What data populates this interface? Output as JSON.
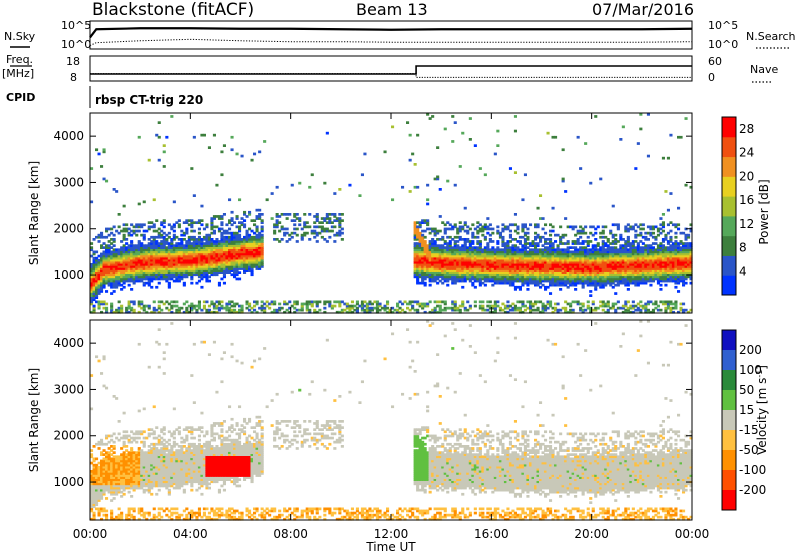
{
  "header": {
    "station": "Blackstone (fitACF)",
    "beam": "Beam 13",
    "date": "07/Mar/2016"
  },
  "panels": {
    "nsky_label": "N.Sky",
    "nsearch_label": "N.Search",
    "noise_ticks": [
      "10^5",
      "10^0"
    ],
    "freq_label": "Freq.",
    "freq_unit": "[MHz]",
    "freq_ticks": [
      "18",
      "8"
    ],
    "nave_label": "Nave",
    "nave_ticks": [
      "60",
      "0"
    ],
    "cpid_label": "CPID",
    "cpid_value": "rbsp CT-trig 220"
  },
  "colors": {
    "power_scale": [
      "#0033ff",
      "#2a55c8",
      "#3d7f3d",
      "#55a85a",
      "#a8c030",
      "#e8d020",
      "#f09020",
      "#f05010",
      "#ff0000"
    ],
    "velocity_scale": [
      "#ff0000",
      "#ff5000",
      "#ff9000",
      "#ffc040",
      "#c8c8b8",
      "#60c040",
      "#2a8a3a",
      "#3060d0",
      "#1010c0"
    ]
  },
  "chart_data": [
    {
      "type": "line",
      "title": "N.Sky / N.Search",
      "ylim": [
        "10^0",
        "10^5"
      ],
      "series": [
        {
          "name": "N.Sky",
          "x": [
            "00:00",
            "00:15",
            "02:00",
            "04:00",
            "06:00",
            "08:00",
            "10:00",
            "12:00",
            "14:00",
            "16:00",
            "18:00",
            "20:00",
            "22:00",
            "24:00"
          ],
          "values": [
            2.0,
            3.7,
            3.9,
            3.9,
            3.8,
            3.8,
            3.7,
            3.6,
            3.7,
            3.7,
            3.7,
            3.7,
            3.7,
            3.8
          ]
        },
        {
          "name": "N.Search",
          "x": [
            "00:00",
            "00:15",
            "02:00",
            "04:00",
            "06:00",
            "08:00",
            "10:00",
            "12:00",
            "14:00",
            "16:00",
            "18:00",
            "20:00",
            "22:00",
            "24:00"
          ],
          "values": [
            0.3,
            0.9,
            1.3,
            1.6,
            1.3,
            1.1,
            1.1,
            1.0,
            1.0,
            1.0,
            1.0,
            1.0,
            1.0,
            1.1
          ]
        }
      ]
    },
    {
      "type": "line",
      "title": "Freq. / Nave",
      "freq_ticks_mhz": [
        8,
        18
      ],
      "nave_ticks": [
        0,
        60
      ],
      "series": [
        {
          "name": "Freq.",
          "x": [
            "00:00",
            "13:00",
            "13:00",
            "24:00"
          ],
          "values": [
            10.5,
            10.5,
            14.5,
            14.5
          ]
        },
        {
          "name": "Nave",
          "x": [
            "00:00",
            "13:00",
            "13:00",
            "24:00"
          ],
          "values": [
            16,
            16,
            5,
            5
          ]
        }
      ]
    },
    {
      "type": "heatmap",
      "title": "Power [dB]",
      "xlabel": "Time UT",
      "ylabel": "Slant Range [km]",
      "x_ticks": [
        "00:00",
        "04:00",
        "08:00",
        "12:00",
        "16:00",
        "20:00",
        "00:00"
      ],
      "y_ticks": [
        1000,
        2000,
        3000,
        4000
      ],
      "ylim": [
        180,
        4500
      ],
      "xlim_hours": [
        0,
        24
      ],
      "colorbar_label": "Power [dB]",
      "colorbar_ticks": [
        4,
        8,
        12,
        16,
        20,
        24,
        28
      ],
      "colorbar_range": [
        0,
        30
      ],
      "band_center_km": [
        {
          "t": 0.0,
          "r": 800
        },
        {
          "t": 0.5,
          "r": 1100
        },
        {
          "t": 2.0,
          "r": 1250
        },
        {
          "t": 4.0,
          "r": 1300
        },
        {
          "t": 6.0,
          "r": 1450
        },
        {
          "t": 6.8,
          "r": 1500
        },
        {
          "t": 12.8,
          "r": 1300
        },
        {
          "t": 14.0,
          "r": 1250
        },
        {
          "t": 16.0,
          "r": 1200
        },
        {
          "t": 20.0,
          "r": 1150
        },
        {
          "t": 24.0,
          "r": 1250
        }
      ]
    },
    {
      "type": "heatmap",
      "title": "Velocity [m s^-1]",
      "xlabel": "Time UT",
      "ylabel": "Slant Range [km]",
      "x_ticks": [
        "00:00",
        "04:00",
        "08:00",
        "12:00",
        "16:00",
        "20:00",
        "00:00"
      ],
      "y_ticks": [
        1000,
        2000,
        3000,
        4000
      ],
      "ylim": [
        180,
        4500
      ],
      "xlim_hours": [
        0,
        24
      ],
      "colorbar_label": "Velocity [m s^-1]",
      "colorbar_ticks": [
        -200,
        -100,
        -50,
        -15,
        15,
        50,
        100,
        200
      ]
    }
  ]
}
